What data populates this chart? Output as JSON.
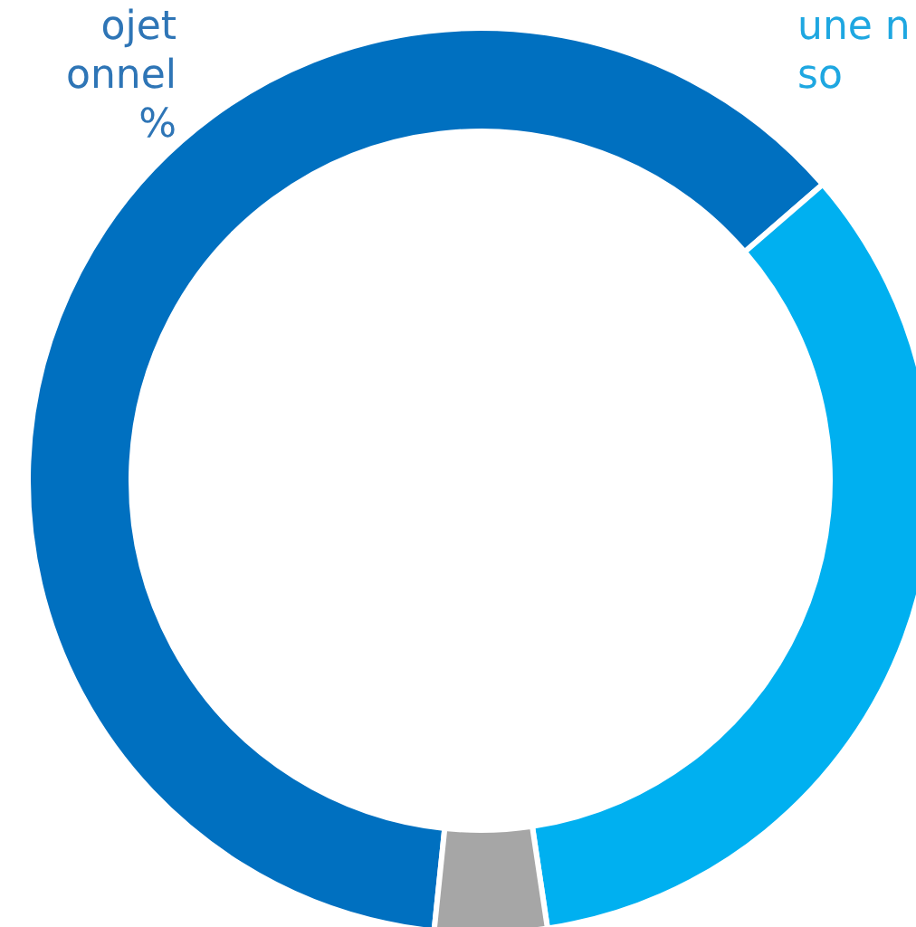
{
  "chart_data": {
    "type": "donut",
    "categories": [
      null,
      null,
      null
    ],
    "values": [
      62,
      34,
      4
    ],
    "colors": [
      "#0070c0",
      "#00b0f0",
      "#a6a6a6"
    ],
    "annotations": [
      "ojet\nonnel\n%",
      "une n\nso"
    ]
  }
}
